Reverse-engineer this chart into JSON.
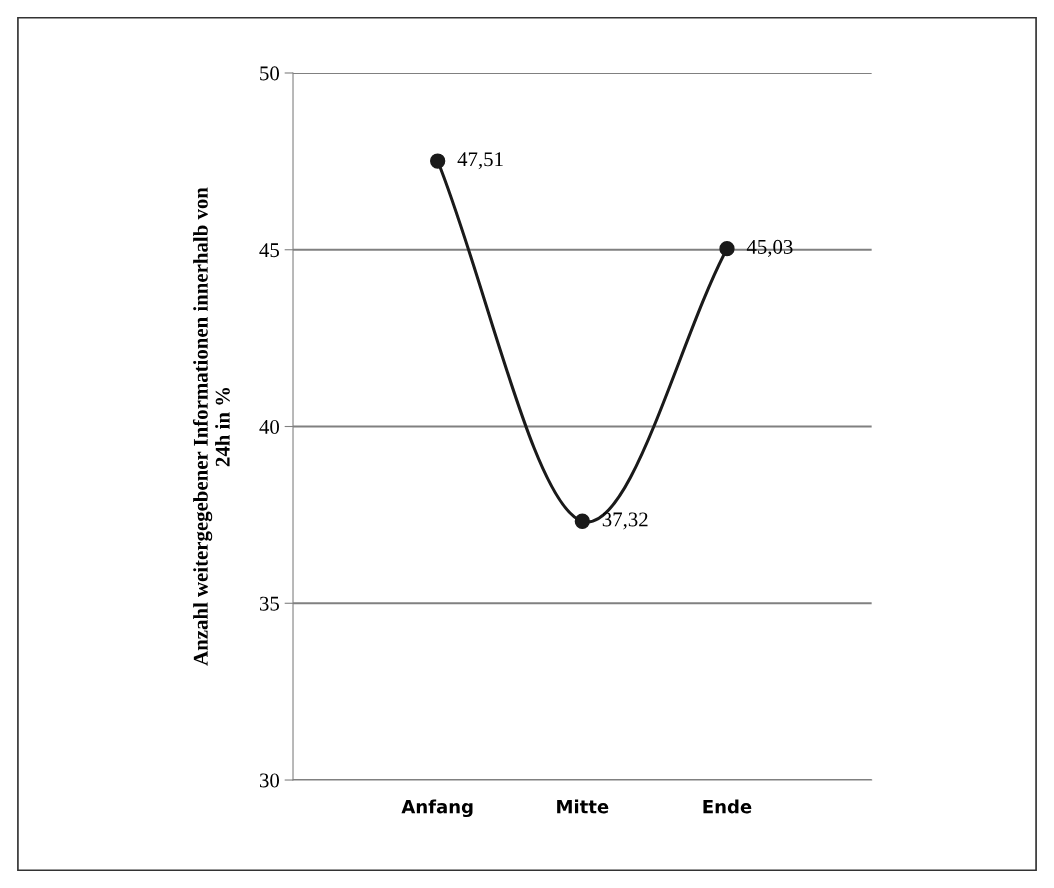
{
  "chart_data": {
    "type": "line",
    "ylabel": "Anzahl weitergegebener Informationen innerhalb von 24h in %",
    "categories": [
      "Anfang",
      "Mitte",
      "Ende"
    ],
    "series": [
      {
        "color": "#1a1a1a",
        "values": [
          47.51,
          37.32,
          45.03
        ],
        "value_labels": [
          "47,51",
          "37,32",
          "45,03"
        ]
      }
    ],
    "ylim": [
      30,
      50
    ],
    "yticks": [
      30,
      35,
      40,
      45,
      50
    ],
    "grid": "y",
    "marker": "circle",
    "line_style": "solid",
    "legend": false
  }
}
